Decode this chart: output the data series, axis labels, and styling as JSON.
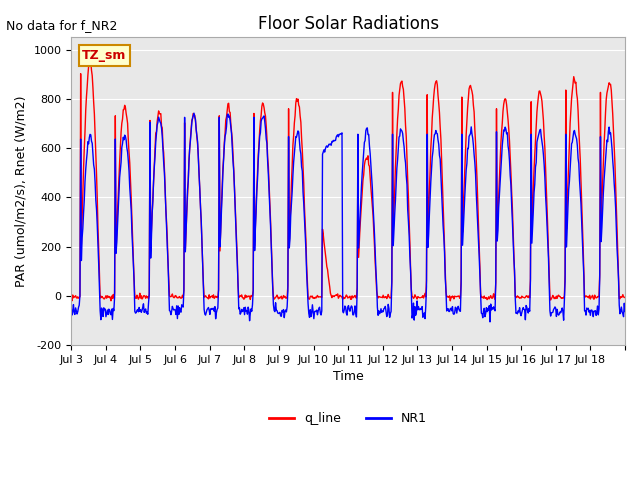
{
  "title": "Floor Solar Radiations",
  "subtitle": "No data for f_NR2",
  "xlabel": "Time",
  "ylabel": "PAR (umol/m2/s), Rnet (W/m2)",
  "ylim": [
    -200,
    1050
  ],
  "yticks": [
    -200,
    0,
    200,
    400,
    600,
    800,
    1000
  ],
  "xtick_labels": [
    "Jul 3",
    "Jul 4",
    "Jul 5",
    "Jul 6",
    "Jul 7",
    "Jul 8",
    "Jul 9",
    "Jul 10",
    "Jul 11",
    "Jul 12",
    "Jul 13",
    "Jul 14",
    "Jul 15",
    "Jul 16",
    "Jul 17",
    "Jul 18"
  ],
  "legend_entries": [
    "q_line",
    "NR1"
  ],
  "legend_colors": [
    "#ff0000",
    "#0000ff"
  ],
  "line_color_red": "#ff0000",
  "line_color_blue": "#0000ff",
  "bg_color": "#e8e8e8",
  "box_label": "TZ_sm",
  "box_facecolor": "#ffffcc",
  "box_edgecolor": "#cc8800"
}
